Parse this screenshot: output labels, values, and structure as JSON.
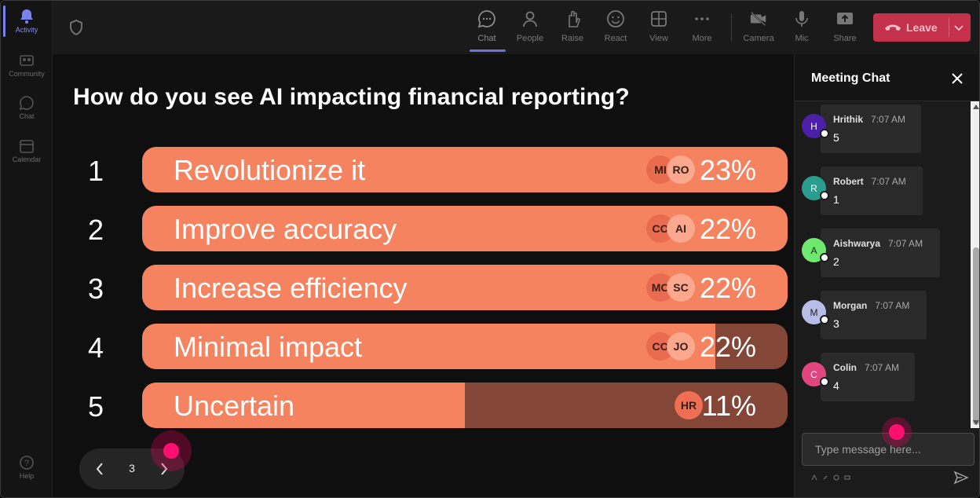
{
  "rail": {
    "items": [
      {
        "label": "Activity",
        "icon": "bell-icon",
        "active": true
      },
      {
        "label": "Community",
        "icon": "community-icon"
      },
      {
        "label": "Chat",
        "icon": "chat-icon"
      },
      {
        "label": "Calendar",
        "icon": "calendar-icon"
      }
    ],
    "help": {
      "label": "Help",
      "icon": "help-icon"
    }
  },
  "toolbar": {
    "buttons": [
      {
        "label": "Chat",
        "icon": "chat-icon",
        "active": true
      },
      {
        "label": "People",
        "icon": "people-icon"
      },
      {
        "label": "Raise",
        "icon": "raise-hand-icon"
      },
      {
        "label": "React",
        "icon": "react-emoji-icon"
      },
      {
        "label": "View",
        "icon": "view-grid-icon"
      },
      {
        "label": "More",
        "icon": "more-icon"
      },
      {
        "label": "Camera",
        "icon": "camera-off-icon"
      },
      {
        "label": "Mic",
        "icon": "mic-icon"
      },
      {
        "label": "Share",
        "icon": "share-icon"
      }
    ],
    "leave_label": "Leave",
    "leave_color": "#c4314b"
  },
  "poll": {
    "question": "How do you see AI impacting financial reporting?",
    "options": [
      {
        "num": "1",
        "label": "Revolutionize it",
        "pct": "23%",
        "fill": 1.0,
        "avatars": [
          "MI",
          "RO"
        ]
      },
      {
        "num": "2",
        "label": "Improve accuracy",
        "pct": "22%",
        "fill": 1.0,
        "avatars": [
          "CO",
          "AI"
        ]
      },
      {
        "num": "3",
        "label": "Increase efficiency",
        "pct": "22%",
        "fill": 1.0,
        "avatars": [
          "MO",
          "SC"
        ]
      },
      {
        "num": "4",
        "label": "Minimal impact",
        "pct": "22%",
        "fill": 0.888,
        "avatars": [
          "CO",
          "JO"
        ]
      },
      {
        "num": "5",
        "label": "Uncertain",
        "pct": "11%",
        "fill": 0.5,
        "avatars": [
          "HR"
        ]
      }
    ],
    "colors": {
      "fill": "#f5835f",
      "track": "#844636"
    }
  },
  "pager": {
    "page": "3"
  },
  "chat": {
    "title": "Meeting Chat",
    "messages": [
      {
        "initial": "H",
        "name": "Hrithik",
        "time": "7:07 AM",
        "text": "5",
        "color": "#4b1fa8"
      },
      {
        "initial": "R",
        "name": "Robert",
        "time": "7:07 AM",
        "text": "1",
        "color": "#2a9d8f"
      },
      {
        "initial": "A",
        "name": "Aishwarya",
        "time": "7:07 AM",
        "text": "2",
        "color": "#6ee86e"
      },
      {
        "initial": "M",
        "name": "Morgan",
        "time": "7:07 AM",
        "text": "3",
        "color": "#b8bde8"
      },
      {
        "initial": "C",
        "name": "Colin",
        "time": "7:07 AM",
        "text": "4",
        "color": "#e0457e"
      }
    ],
    "input_placeholder": "Type message here..."
  }
}
